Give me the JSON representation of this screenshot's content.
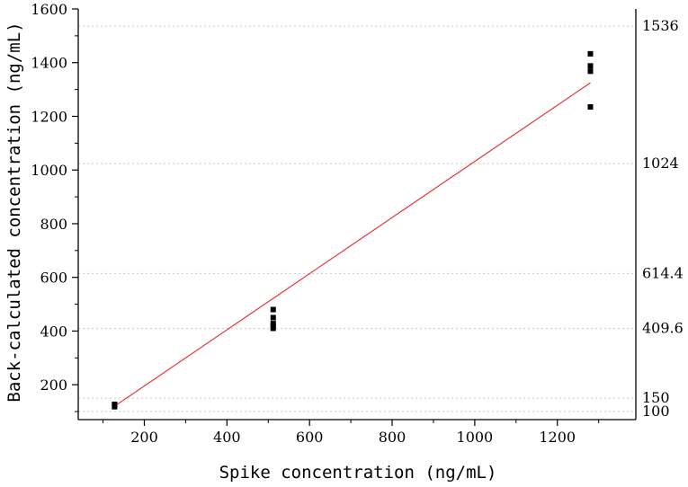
{
  "chart_data": {
    "type": "scatter",
    "xlabel": "Spike concentration (ng/mL)",
    "ylabel": "Back-calculated concentration (ng/mL)",
    "xlim": [
      40,
      1390
    ],
    "ylim": [
      70,
      1600
    ],
    "x_ticks": [
      200,
      400,
      600,
      800,
      1000,
      1200
    ],
    "y_ticks": [
      200,
      400,
      600,
      800,
      1000,
      1200,
      1400,
      1600
    ],
    "grid": false,
    "points": [
      {
        "x": 128,
        "y": 118
      },
      {
        "x": 128,
        "y": 123
      },
      {
        "x": 128,
        "y": 127
      },
      {
        "x": 512,
        "y": 410
      },
      {
        "x": 512,
        "y": 420
      },
      {
        "x": 512,
        "y": 428
      },
      {
        "x": 512,
        "y": 450
      },
      {
        "x": 512,
        "y": 480
      },
      {
        "x": 1280,
        "y": 1235
      },
      {
        "x": 1280,
        "y": 1368
      },
      {
        "x": 1280,
        "y": 1388
      },
      {
        "x": 1280,
        "y": 1433
      }
    ],
    "fit_line": {
      "x1": 128,
      "y1": 120,
      "x2": 1280,
      "y2": 1325,
      "color": "#e8262b"
    },
    "reference_lines": [
      {
        "y": 1536,
        "label": "1536"
      },
      {
        "y": 1024,
        "label": "1024"
      },
      {
        "y": 614.4,
        "label": "614.4"
      },
      {
        "y": 409.6,
        "label": "409.6"
      },
      {
        "y": 150,
        "label": "150"
      },
      {
        "y": 100,
        "label": "100"
      }
    ],
    "point_color": "#000000"
  }
}
